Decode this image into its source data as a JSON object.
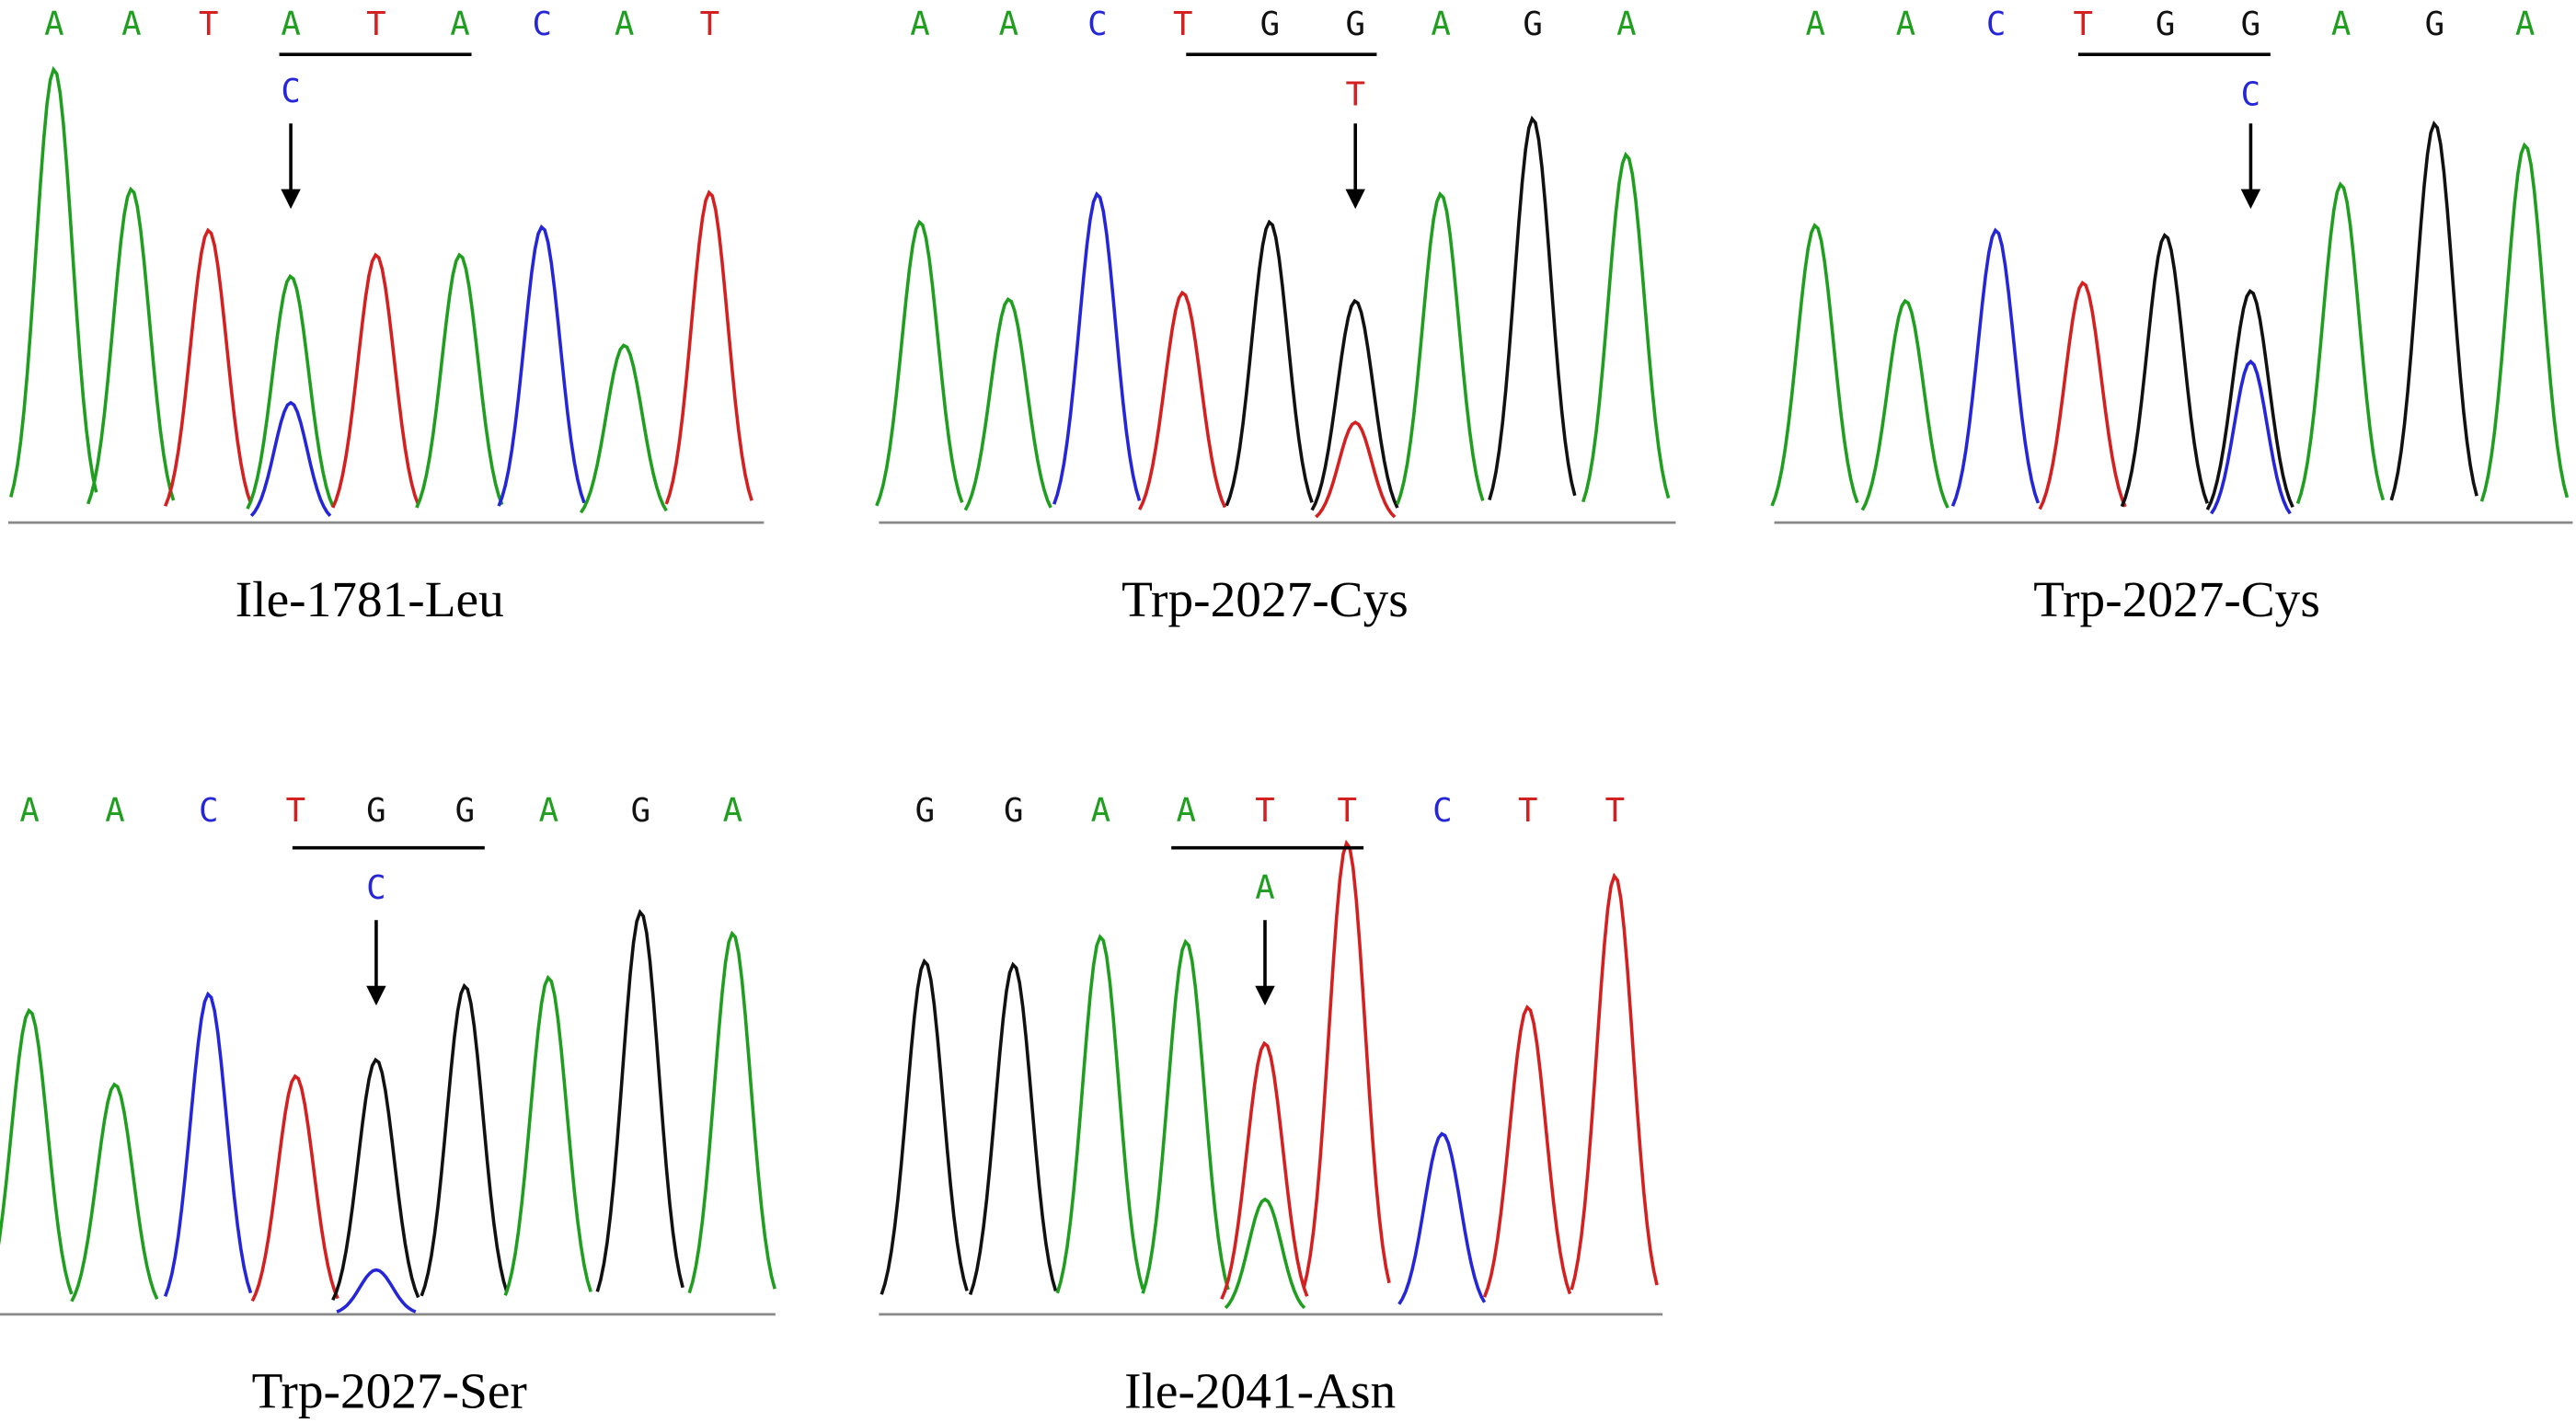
{
  "panels": [
    {
      "bases": [
        "A",
        "A",
        "T",
        "A",
        "T",
        "A",
        "C",
        "A",
        "T"
      ],
      "mutation": "C",
      "label": "Ile-1781-Leu"
    },
    {
      "bases": [
        "A",
        "A",
        "C",
        "T",
        "G",
        "G",
        "A",
        "G",
        "A"
      ],
      "mutation": "T",
      "label": "Trp-2027-Cys"
    },
    {
      "bases": [
        "A",
        "A",
        "C",
        "T",
        "G",
        "G",
        "A",
        "G",
        "A"
      ],
      "mutation": "C",
      "label": "Trp-2027-Cys"
    },
    {
      "bases": [
        "A",
        "A",
        "C",
        "T",
        "G",
        "G",
        "A",
        "G",
        "A"
      ],
      "mutation": "C",
      "label": "Trp-2027-Ser"
    },
    {
      "bases": [
        "G",
        "G",
        "A",
        "A",
        "T",
        "T",
        "C",
        "T",
        "T"
      ],
      "mutation": "A",
      "label": "Ile-2041-Asn"
    }
  ]
}
